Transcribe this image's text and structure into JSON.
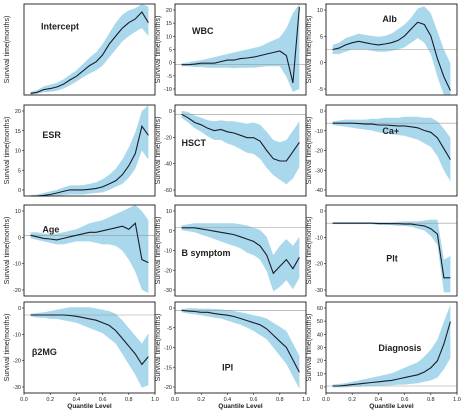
{
  "figure": {
    "y_label": "Survival time(months)",
    "x_label": "Quantile Level",
    "x_ticks": [
      "0.0",
      "0.2",
      "0.4",
      "0.6",
      "0.8",
      "1.0"
    ]
  },
  "colors": {
    "band": "#a9d8ec",
    "line": "#1c1c2a",
    "zero_line": "#9a9a9a"
  },
  "chart_data": [
    {
      "type": "line",
      "title": "Intercept",
      "xlim": [
        0,
        1
      ],
      "ylim": [
        0,
        170
      ],
      "yticks": [],
      "x": [
        0.05,
        0.1,
        0.15,
        0.2,
        0.25,
        0.3,
        0.35,
        0.4,
        0.45,
        0.5,
        0.55,
        0.6,
        0.65,
        0.7,
        0.75,
        0.8,
        0.85,
        0.9,
        0.95
      ],
      "y": [
        3,
        5,
        10,
        12,
        15,
        20,
        28,
        35,
        45,
        55,
        62,
        75,
        95,
        110,
        125,
        135,
        142,
        155,
        135
      ],
      "lower": [
        1,
        2,
        5,
        6,
        8,
        12,
        18,
        25,
        33,
        40,
        46,
        55,
        70,
        85,
        100,
        110,
        118,
        125,
        110
      ],
      "upper": [
        6,
        9,
        16,
        19,
        23,
        29,
        38,
        46,
        58,
        70,
        80,
        95,
        115,
        135,
        150,
        158,
        162,
        170,
        165
      ]
    },
    {
      "type": "line",
      "title": "WBC",
      "xlim": [
        0,
        1
      ],
      "ylim": [
        -10,
        20
      ],
      "yticks": [
        "20",
        "15",
        "10",
        "5",
        "0",
        "-5",
        "-10"
      ],
      "x": [
        0.05,
        0.1,
        0.15,
        0.2,
        0.25,
        0.3,
        0.35,
        0.4,
        0.45,
        0.5,
        0.55,
        0.6,
        0.65,
        0.7,
        0.75,
        0.8,
        0.85,
        0.9,
        0.95
      ],
      "y": [
        0,
        0,
        0.2,
        0.5,
        0.5,
        0.5,
        1,
        1.5,
        1.5,
        2,
        2.2,
        2.5,
        3,
        3.5,
        4,
        4.5,
        3,
        -6,
        19
      ],
      "lower": [
        -0.5,
        -0.5,
        -0.8,
        -0.8,
        -1,
        -1,
        -1,
        -1,
        -1.2,
        -1,
        -1,
        -1,
        -0.8,
        -0.5,
        -0.5,
        -0.5,
        -4,
        -9,
        -8
      ],
      "upper": [
        0.5,
        0.8,
        1.2,
        1.5,
        2,
        2.5,
        3,
        3.5,
        4,
        4.5,
        5,
        5.5,
        6,
        7,
        8,
        9,
        12,
        17,
        20
      ]
    },
    {
      "type": "line",
      "title": "Alb",
      "xlim": [
        0,
        1
      ],
      "ylim": [
        -10,
        10
      ],
      "yticks": [
        "10",
        "5",
        "0",
        "-5"
      ],
      "x": [
        0.05,
        0.1,
        0.15,
        0.2,
        0.25,
        0.3,
        0.35,
        0.4,
        0.45,
        0.5,
        0.55,
        0.6,
        0.65,
        0.7,
        0.75,
        0.8,
        0.85,
        0.9,
        0.95
      ],
      "y": [
        0,
        0.3,
        1,
        1.5,
        1.8,
        1.5,
        1.2,
        1,
        1.2,
        1.5,
        2,
        3,
        4.5,
        6,
        5.5,
        3,
        -2,
        -6,
        -9
      ],
      "lower": [
        -1,
        -1,
        -0.5,
        0,
        0,
        0,
        -0.3,
        -0.5,
        -0.5,
        -0.3,
        0,
        0.5,
        1.5,
        2.5,
        1.5,
        -1,
        -6,
        -10,
        -10
      ],
      "upper": [
        1,
        1.5,
        2.5,
        3,
        3.5,
        3.2,
        3,
        2.8,
        3,
        3.5,
        4.5,
        5.5,
        7,
        9,
        9.5,
        8,
        4,
        0,
        -3
      ]
    },
    {
      "type": "line",
      "title": "ESR",
      "xlim": [
        0,
        1
      ],
      "ylim": [
        0,
        30
      ],
      "yticks": [
        "20",
        "15",
        "10",
        "5",
        "0"
      ],
      "x": [
        0.05,
        0.1,
        0.15,
        0.2,
        0.25,
        0.3,
        0.35,
        0.4,
        0.45,
        0.5,
        0.55,
        0.6,
        0.65,
        0.7,
        0.75,
        0.8,
        0.85,
        0.9,
        0.95
      ],
      "y": [
        0,
        0,
        0.2,
        0.5,
        1,
        1.5,
        2,
        2,
        2,
        2.2,
        2.5,
        3,
        4,
        5,
        7,
        10,
        14,
        23,
        20
      ],
      "lower": [
        -0.2,
        -0.2,
        -0.2,
        0,
        0,
        0.3,
        0.5,
        0.5,
        0.5,
        0.8,
        1,
        1.2,
        2,
        3,
        4,
        6,
        9,
        15,
        12
      ],
      "upper": [
        0.3,
        0.5,
        1,
        1.5,
        2,
        2.8,
        3.5,
        3.5,
        3.6,
        4,
        4.5,
        5.5,
        7,
        9,
        12,
        16,
        21,
        28,
        30
      ]
    },
    {
      "type": "line",
      "title": "HSCT",
      "xlim": [
        0,
        1
      ],
      "ylim": [
        -70,
        8
      ],
      "yticks": [
        "0",
        "-20",
        "-40",
        "-60"
      ],
      "x": [
        0.05,
        0.1,
        0.15,
        0.2,
        0.25,
        0.3,
        0.35,
        0.4,
        0.45,
        0.5,
        0.55,
        0.6,
        0.65,
        0.7,
        0.75,
        0.8,
        0.85,
        0.9,
        0.95
      ],
      "y": [
        0,
        -3,
        -7,
        -9,
        -12,
        -14,
        -13,
        -15,
        -16,
        -18,
        -20,
        -20,
        -23,
        -31,
        -38,
        -40,
        -40,
        -32,
        -24
      ],
      "lower": [
        -3,
        -7,
        -12,
        -15,
        -19,
        -22,
        -22,
        -25,
        -27,
        -30,
        -33,
        -34,
        -38,
        -46,
        -52,
        -56,
        -60,
        -55,
        -45
      ],
      "upper": [
        3,
        2,
        -1,
        -3,
        -5,
        -6,
        -5,
        -6,
        -6,
        -7,
        -8,
        -7,
        -9,
        -15,
        -22,
        -24,
        -22,
        -14,
        -6
      ]
    },
    {
      "type": "line",
      "title": "Ca+",
      "xlim": [
        0,
        1
      ],
      "ylim": [
        -40,
        10
      ],
      "yticks": [
        "0",
        "-10",
        "-20",
        "-30",
        "-40"
      ],
      "x": [
        0.05,
        0.1,
        0.15,
        0.2,
        0.25,
        0.3,
        0.35,
        0.4,
        0.45,
        0.5,
        0.55,
        0.6,
        0.65,
        0.7,
        0.75,
        0.8,
        0.85,
        0.9,
        0.95
      ],
      "y": [
        0,
        0,
        0,
        0,
        -0.2,
        -0.5,
        -0.5,
        -1,
        -1,
        -1.2,
        -1.5,
        -1.5,
        -2,
        -2.5,
        -4,
        -5,
        -8,
        -14,
        -20
      ],
      "lower": [
        -1,
        -1.5,
        -2,
        -2.5,
        -3,
        -3.5,
        -4,
        -5,
        -5.5,
        -6,
        -6.5,
        -7,
        -8,
        -9,
        -11,
        -13,
        -18,
        -26,
        -32
      ],
      "upper": [
        1,
        1.5,
        2,
        2,
        2,
        2,
        2.5,
        2.5,
        3,
        3,
        3,
        3.5,
        3.5,
        3.5,
        3,
        3,
        1,
        -3,
        -8
      ]
    },
    {
      "type": "line",
      "title": "Age",
      "xlim": [
        0,
        1
      ],
      "ylim": [
        -20,
        10
      ],
      "yticks": [
        "10",
        "0",
        "-10",
        "-20"
      ],
      "x": [
        0.05,
        0.1,
        0.15,
        0.2,
        0.25,
        0.3,
        0.35,
        0.4,
        0.45,
        0.5,
        0.55,
        0.6,
        0.65,
        0.7,
        0.75,
        0.8,
        0.85,
        0.9,
        0.95
      ],
      "y": [
        0,
        -0.5,
        -1,
        -1.2,
        -1.5,
        -1,
        -0.5,
        0,
        0.5,
        1,
        1,
        1.5,
        2,
        2.5,
        3,
        2,
        4,
        -8,
        -9
      ],
      "lower": [
        -1,
        -1.5,
        -2,
        -2.5,
        -3,
        -3,
        -2.5,
        -2,
        -2,
        -2,
        -2.5,
        -3,
        -3,
        -3.5,
        -5,
        -8,
        -12,
        -18,
        -19
      ],
      "upper": [
        1,
        1,
        0.5,
        0.5,
        0.5,
        1,
        1.5,
        2,
        3,
        4,
        4.5,
        5,
        6,
        7,
        8,
        9,
        10,
        8,
        5
      ]
    },
    {
      "type": "line",
      "title": "B symptom",
      "xlim": [
        0,
        1
      ],
      "ylim": [
        -30,
        10
      ],
      "yticks": [
        "10",
        "0",
        "-10",
        "-20",
        "-30"
      ],
      "x": [
        0.05,
        0.1,
        0.15,
        0.2,
        0.25,
        0.3,
        0.35,
        0.4,
        0.45,
        0.5,
        0.55,
        0.6,
        0.65,
        0.7,
        0.75,
        0.8,
        0.85,
        0.9,
        0.95
      ],
      "y": [
        0,
        0,
        0,
        -0.5,
        -1,
        -1.5,
        -2,
        -2.5,
        -3,
        -4,
        -5,
        -6,
        -8,
        -12,
        -20,
        -17,
        -14,
        -18,
        -13
      ],
      "lower": [
        -1,
        -1.5,
        -2,
        -3,
        -4,
        -5,
        -6,
        -7,
        -8,
        -9,
        -11,
        -12,
        -14,
        -19,
        -28,
        -26,
        -23,
        -27,
        -22
      ],
      "upper": [
        1,
        1.5,
        2,
        2,
        2,
        2,
        2,
        2,
        2,
        1.5,
        1,
        0,
        -1,
        -4,
        -12,
        -8,
        -5,
        -8,
        -4
      ]
    },
    {
      "type": "line",
      "title": "Plt",
      "xlim": [
        0,
        1
      ],
      "ylim": [
        -40,
        10
      ],
      "yticks": [
        "0",
        "-10",
        "-20",
        "-30"
      ],
      "x": [
        0.05,
        0.1,
        0.15,
        0.2,
        0.25,
        0.3,
        0.35,
        0.4,
        0.45,
        0.5,
        0.55,
        0.6,
        0.65,
        0.7,
        0.75,
        0.8,
        0.85,
        0.9,
        0.95
      ],
      "y": [
        0,
        0,
        0,
        0,
        0,
        0,
        0,
        -0.2,
        -0.2,
        -0.3,
        -0.3,
        -0.5,
        -0.5,
        -1,
        -1.5,
        -3,
        -6,
        -30,
        -30
      ],
      "lower": [
        -0.5,
        -0.5,
        -0.5,
        -0.5,
        -0.5,
        -0.5,
        -0.5,
        -1,
        -1,
        -1,
        -1.5,
        -1.5,
        -2,
        -3,
        -4,
        -7,
        -12,
        -38,
        -38
      ],
      "upper": [
        0.5,
        0.5,
        0.5,
        0.5,
        0.5,
        0.5,
        0.5,
        0.5,
        0.5,
        0.6,
        0.8,
        1,
        1,
        1,
        1.5,
        2,
        2,
        -20,
        -18
      ]
    },
    {
      "type": "line",
      "title": "β2MG",
      "xlim": [
        0,
        1
      ],
      "ylim": [
        -30,
        5
      ],
      "yticks": [
        "0",
        "-10",
        "-20",
        "-30"
      ],
      "x": [
        0.05,
        0.1,
        0.15,
        0.2,
        0.25,
        0.3,
        0.35,
        0.4,
        0.45,
        0.5,
        0.55,
        0.6,
        0.65,
        0.7,
        0.75,
        0.8,
        0.85,
        0.9,
        0.95
      ],
      "y": [
        0,
        0,
        0,
        0,
        0,
        0,
        -0.2,
        -0.5,
        -1,
        -1.5,
        -2,
        -3,
        -4,
        -6,
        -9,
        -12,
        -15,
        -19,
        -16
      ],
      "lower": [
        -0.5,
        -1,
        -1,
        -1.5,
        -1.5,
        -2,
        -2.5,
        -3,
        -4,
        -5,
        -6,
        -7,
        -9,
        -11,
        -15,
        -19,
        -23,
        -28,
        -27
      ],
      "upper": [
        0.5,
        0.8,
        1,
        1.5,
        2,
        2.5,
        3,
        3,
        3,
        3,
        2.5,
        2,
        1.5,
        0.5,
        -2,
        -5,
        -8,
        -11,
        -7
      ]
    },
    {
      "type": "line",
      "title": "IPI",
      "xlim": [
        0,
        1
      ],
      "ylim": [
        -20,
        2
      ],
      "yticks": [
        "0",
        "-5",
        "-10",
        "-15",
        "-20"
      ],
      "x": [
        0.05,
        0.1,
        0.15,
        0.2,
        0.25,
        0.3,
        0.35,
        0.4,
        0.45,
        0.5,
        0.55,
        0.6,
        0.65,
        0.7,
        0.75,
        0.8,
        0.85,
        0.9,
        0.95
      ],
      "y": [
        0,
        -0.2,
        -0.3,
        -0.5,
        -0.5,
        -0.8,
        -1,
        -1.2,
        -1.5,
        -2,
        -2.5,
        -3,
        -3.5,
        -4.5,
        -6,
        -7.5,
        -9,
        -12,
        -15
      ],
      "lower": [
        -0.5,
        -0.8,
        -1,
        -1.2,
        -1.5,
        -1.8,
        -2,
        -2.5,
        -3,
        -3.5,
        -4.2,
        -5,
        -6,
        -7,
        -9,
        -11,
        -13,
        -16,
        -19
      ],
      "upper": [
        0.3,
        0.5,
        0.5,
        0.4,
        0.4,
        0.3,
        0.2,
        0,
        -0.2,
        -0.5,
        -0.8,
        -1.2,
        -1.5,
        -2,
        -3,
        -4,
        -5,
        -8,
        -11
      ]
    },
    {
      "type": "line",
      "title": "Diagnosis",
      "xlim": [
        0,
        1
      ],
      "ylim": [
        -5,
        60
      ],
      "yticks": [
        "60",
        "50",
        "40",
        "30",
        "20",
        "10",
        "0"
      ],
      "x": [
        0.05,
        0.1,
        0.15,
        0.2,
        0.25,
        0.3,
        0.35,
        0.4,
        0.45,
        0.5,
        0.55,
        0.6,
        0.65,
        0.7,
        0.75,
        0.8,
        0.85,
        0.9,
        0.95
      ],
      "y": [
        0,
        0,
        0.5,
        1,
        1.5,
        2,
        2.5,
        3,
        3.5,
        4,
        5,
        6,
        7,
        8,
        10,
        13,
        18,
        30,
        46
      ],
      "lower": [
        -1,
        -1,
        -1,
        -0.5,
        -0.5,
        -0.3,
        0,
        0,
        0.3,
        0.5,
        1,
        1,
        1.5,
        2,
        3,
        4,
        6,
        12,
        20
      ],
      "upper": [
        1,
        1.5,
        2,
        3,
        4,
        5,
        6,
        7,
        8,
        9,
        11,
        13,
        15,
        17,
        21,
        26,
        33,
        46,
        58
      ]
    }
  ]
}
